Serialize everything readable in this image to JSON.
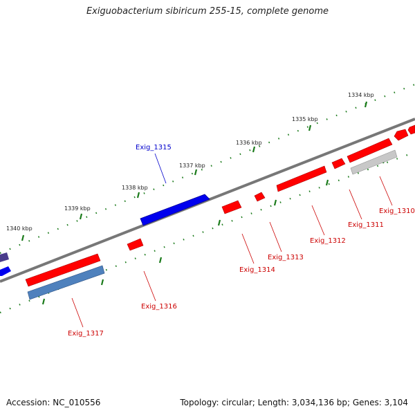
{
  "title": "Exiguobacterium sibiricum 255-15, complete genome",
  "footer": {
    "accession": "Accession: NC_010556",
    "summary": "Topology: circular; Length: 3,034,136 bp; Genes: 3,104"
  },
  "scale_labels": [
    "1334 kbp",
    "1335 kbp",
    "1336 kbp",
    "1337 kbp",
    "1338 kbp",
    "1339 kbp",
    "1340 kbp"
  ],
  "genes": [
    {
      "id": "Exig_1310",
      "label": "Exig_1310",
      "color": "#cc0000"
    },
    {
      "id": "Exig_1311",
      "label": "Exig_1311",
      "color": "#cc0000"
    },
    {
      "id": "Exig_1312",
      "label": "Exig_1312",
      "color": "#cc0000"
    },
    {
      "id": "Exig_1313",
      "label": "Exig_1313",
      "color": "#cc0000"
    },
    {
      "id": "Exig_1314",
      "label": "Exig_1314",
      "color": "#cc0000"
    },
    {
      "id": "Exig_1315",
      "label": "Exig_1315",
      "color": "#0000cc"
    },
    {
      "id": "Exig_1316",
      "label": "Exig_1316",
      "color": "#cc0000"
    },
    {
      "id": "Exig_1317",
      "label": "Exig_1317",
      "color": "#cc0000"
    }
  ],
  "colors": {
    "forward_gene": "#ff0000",
    "reverse_gene": "#0000ee",
    "rna_gene": "#4f81bd",
    "pseudo_gene": "#c0c0c0",
    "backbone": "#777777",
    "ticks": "#1a7a1a"
  }
}
